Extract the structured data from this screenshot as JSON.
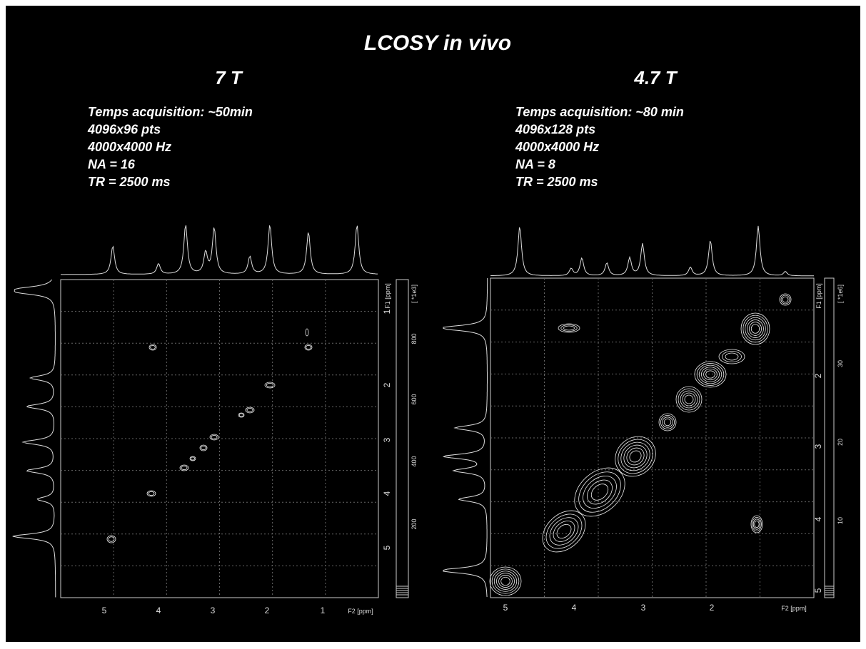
{
  "title": "LCOSY in vivo",
  "panels": [
    {
      "heading": "7 T",
      "params": [
        "Temps acquisition:  ~50min",
        "4096x96 pts",
        "4000x4000 Hz",
        "NA = 16",
        "TR = 2500 ms"
      ],
      "x_ticks": [
        "5",
        "4",
        "3",
        "2",
        "1"
      ],
      "x_label": "F2 [ppm]",
      "y_ticks": [
        "1",
        "2",
        "3",
        "4",
        "5"
      ],
      "y_label": "F1 [ppm]",
      "scale_ticks": [
        "800",
        "600",
        "400",
        "200"
      ],
      "scale_label": "[ *1e3]"
    },
    {
      "heading": "4.7 T",
      "params": [
        "Temps acquisition:  ~80 min",
        "4096x128 pts",
        "4000x4000 Hz",
        "NA = 8",
        "TR = 2500 ms"
      ],
      "x_ticks": [
        "5",
        "4",
        "3",
        "2"
      ],
      "x_label": "F2 [ppm]",
      "y_ticks": [
        "2",
        "3",
        "4",
        "5"
      ],
      "y_label": "F1 [ppm]",
      "scale_ticks": [
        "30",
        "20",
        "10"
      ],
      "scale_label": "[ *1e6]"
    }
  ]
}
